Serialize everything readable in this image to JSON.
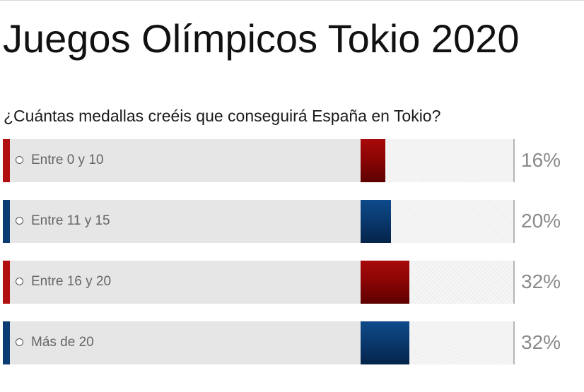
{
  "poll": {
    "title": "Juegos Olímpicos Tokio 2020",
    "question": "¿Cuántas medallas creéis que conseguirá España en Tokio?",
    "options": [
      {
        "label": "Entre 0 y 10",
        "percent_label": "16%",
        "percent": 16,
        "color": "red"
      },
      {
        "label": "Entre 11 y 15",
        "percent_label": "20%",
        "percent": 20,
        "color": "blue"
      },
      {
        "label": "Entre 16 y 20",
        "percent_label": "32%",
        "percent": 32,
        "color": "red"
      },
      {
        "label": "Más de 20",
        "percent_label": "32%",
        "percent": 32,
        "color": "blue"
      }
    ]
  },
  "colors": {
    "red_accent": "#b01010",
    "blue_accent": "#0b3b73",
    "label_background": "#e6e6e6",
    "percent_text": "#8a8a8a"
  }
}
